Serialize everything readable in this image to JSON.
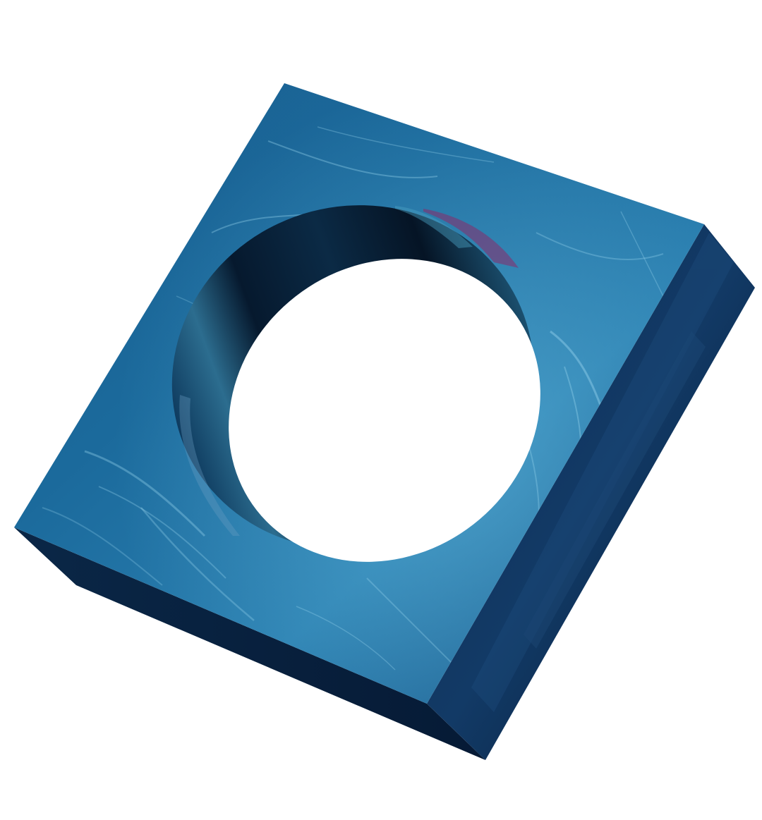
{
  "scene": {
    "subject": "3d-square-block-with-circular-hole",
    "palette": {
      "background": "#ffffff",
      "face_light": "#2f7fb0",
      "face_mid": "#1a5d8e",
      "face_dark": "#0c3560",
      "side_dark": "#071f3d",
      "side_mid": "#0d2c52",
      "bottom_dark": "#061a35",
      "highlight": "#8fd3ee",
      "inner_magenta": "#8a2a6a"
    }
  }
}
